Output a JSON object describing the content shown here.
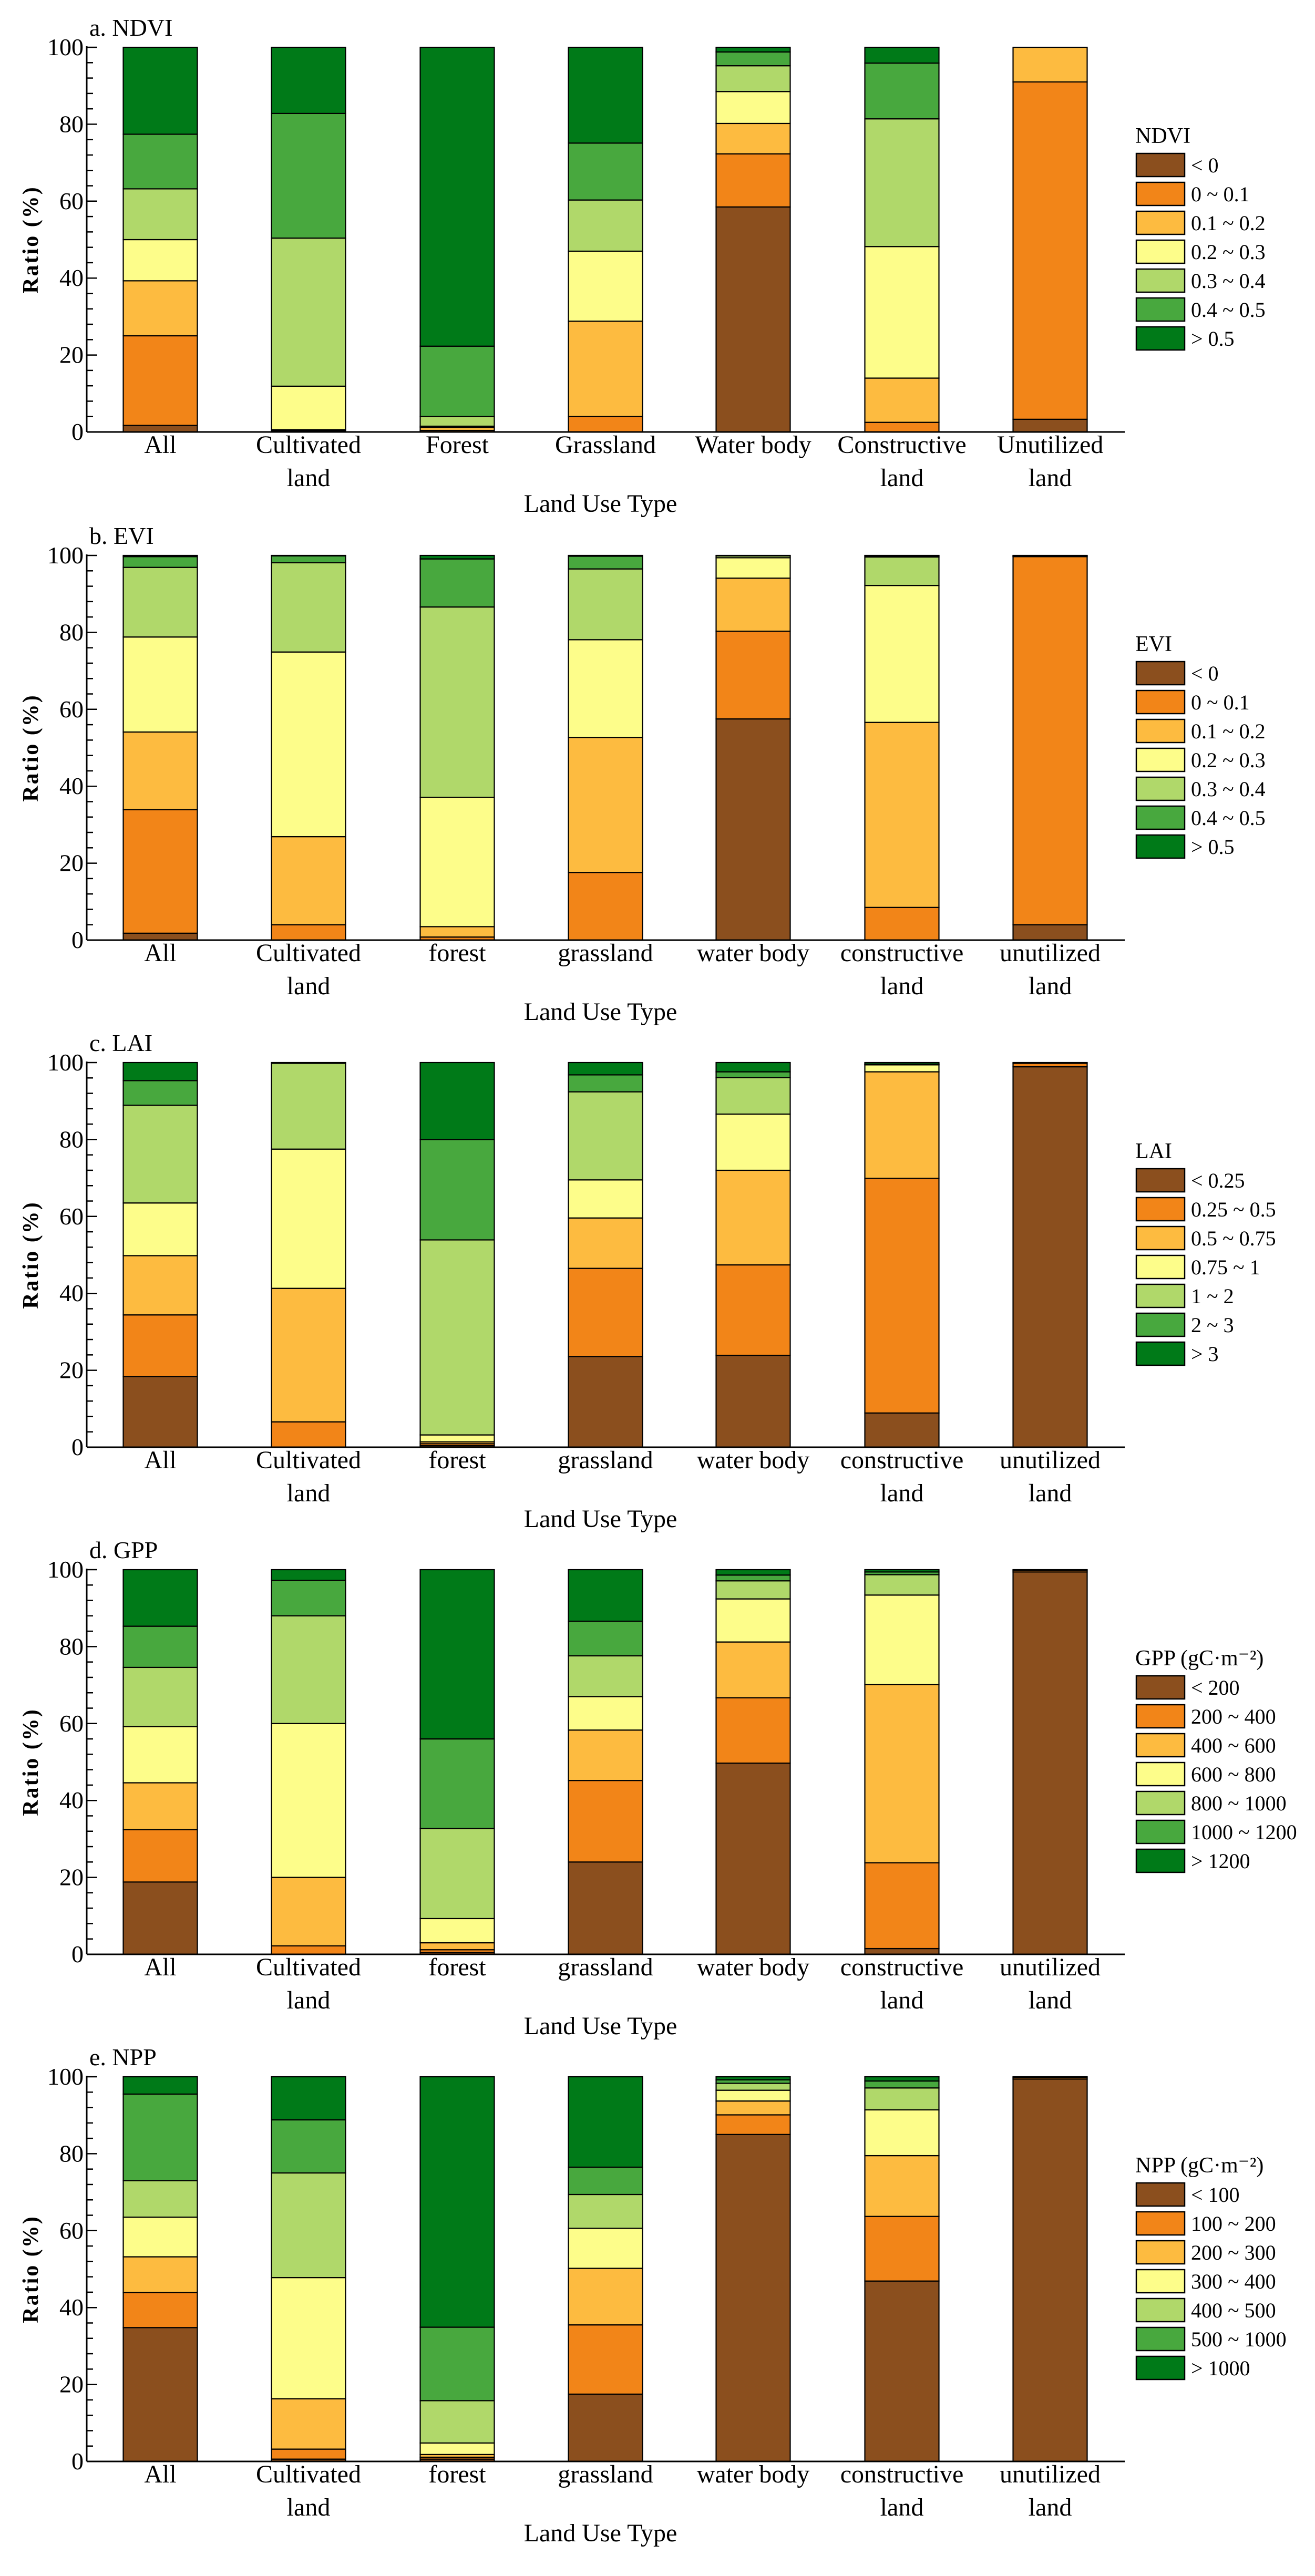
{
  "chart_data": [
    {
      "type": "bar",
      "stacked": true,
      "title": "a. NDVI",
      "xlabel": "Land Use Type",
      "ylabel": "Ratio (%)",
      "ylim": [
        0,
        100
      ],
      "yticks": [
        "0",
        "20",
        "40",
        "60",
        "80",
        "100"
      ],
      "grid": false,
      "legend_placement": "right",
      "legend_title": "NDVI",
      "categories": [
        [
          "All"
        ],
        [
          "Cultivated",
          "land"
        ],
        [
          "Forest"
        ],
        [
          "Grassland"
        ],
        [
          "Water body"
        ],
        [
          "Constructive",
          "land"
        ],
        [
          "Unutilized",
          "land"
        ]
      ],
      "series": [
        {
          "name": "< 0",
          "color": "#8B4F1E",
          "values": [
            1.7,
            0,
            0,
            0,
            58.5,
            0,
            3.3
          ]
        },
        {
          "name": "0 ~ 0.1",
          "color": "#F28518",
          "values": [
            23.3,
            0.3,
            0.4,
            4.0,
            13.8,
            2.5,
            87.7
          ]
        },
        {
          "name": "0.1 ~ 0.2",
          "color": "#FDBB40",
          "values": [
            14.3,
            0.3,
            0.8,
            24.8,
            7.9,
            11.5,
            9.0
          ]
        },
        {
          "name": "0.2 ~ 0.3",
          "color": "#FDFD8A",
          "values": [
            10.7,
            11.3,
            0.3,
            18.2,
            8.3,
            34.2,
            0
          ]
        },
        {
          "name": "0.3 ~ 0.4",
          "color": "#B0D86A",
          "values": [
            13.2,
            38.5,
            2.5,
            13.3,
            6.7,
            33.2,
            0
          ]
        },
        {
          "name": "0.4 ~ 0.5",
          "color": "#48A83E",
          "values": [
            14.2,
            32.4,
            18.3,
            14.8,
            3.6,
            14.5,
            0
          ]
        },
        {
          "name": "> 0.5",
          "color": "#007A18",
          "values": [
            22.6,
            17.2,
            77.7,
            24.9,
            1.2,
            4.1,
            0
          ]
        }
      ]
    },
    {
      "type": "bar",
      "stacked": true,
      "title": "b. EVI",
      "xlabel": "Land Use Type",
      "ylabel": "Ratio (%)",
      "ylim": [
        0,
        100
      ],
      "yticks": [
        "0",
        "20",
        "40",
        "60",
        "80",
        "100"
      ],
      "grid": false,
      "legend_placement": "right",
      "legend_title": "EVI",
      "categories": [
        [
          "All"
        ],
        [
          "Cultivated",
          "land"
        ],
        [
          "forest"
        ],
        [
          "grassland"
        ],
        [
          "water body"
        ],
        [
          "constructive",
          "land"
        ],
        [
          "unutilized",
          "land"
        ]
      ],
      "series": [
        {
          "name": "< 0",
          "color": "#8B4F1E",
          "values": [
            1.8,
            0,
            0,
            0,
            57.5,
            0,
            4.0
          ]
        },
        {
          "name": "0 ~ 0.1",
          "color": "#F28518",
          "values": [
            32.1,
            4.0,
            0.8,
            17.6,
            22.8,
            8.5,
            95.7
          ]
        },
        {
          "name": "0.1 ~ 0.2",
          "color": "#FDBB40",
          "values": [
            20.2,
            22.9,
            2.7,
            35.1,
            13.8,
            48.1,
            0.1
          ]
        },
        {
          "name": "0.2 ~ 0.3",
          "color": "#FDFD8A",
          "values": [
            24.7,
            48.0,
            33.6,
            25.4,
            5.3,
            35.6,
            0.1
          ]
        },
        {
          "name": "0.3 ~ 0.4",
          "color": "#B0D86A",
          "values": [
            18.1,
            23.2,
            49.5,
            18.4,
            0.5,
            7.4,
            0.1
          ]
        },
        {
          "name": "0.4 ~ 0.5",
          "color": "#48A83E",
          "values": [
            2.8,
            1.8,
            12.5,
            3.3,
            0.1,
            0.3,
            0
          ]
        },
        {
          "name": "> 0.5",
          "color": "#007A18",
          "values": [
            0.3,
            0.1,
            0.9,
            0.2,
            0,
            0.1,
            0
          ]
        }
      ]
    },
    {
      "type": "bar",
      "stacked": true,
      "title": "c. LAI",
      "xlabel": "Land Use Type",
      "ylabel": "Ratio (%)",
      "ylim": [
        0,
        100
      ],
      "yticks": [
        "0",
        "20",
        "40",
        "60",
        "80",
        "100"
      ],
      "grid": false,
      "legend_placement": "right",
      "legend_title": "LAI",
      "categories": [
        [
          "All"
        ],
        [
          "Cultivated",
          "land"
        ],
        [
          "forest"
        ],
        [
          "grassland"
        ],
        [
          "water body"
        ],
        [
          "constructive",
          "land"
        ],
        [
          "unutilized",
          "land"
        ]
      ],
      "series": [
        {
          "name": "< 0.25",
          "color": "#8B4F1E",
          "values": [
            18.4,
            0,
            0.4,
            23.6,
            23.9,
            8.9,
            98.9
          ]
        },
        {
          "name": "0.25 ~ 0.5",
          "color": "#F28518",
          "values": [
            16.0,
            6.6,
            0.5,
            22.9,
            23.5,
            61.0,
            0.9
          ]
        },
        {
          "name": "0.5 ~ 0.75",
          "color": "#FDBB40",
          "values": [
            15.4,
            34.7,
            0.5,
            13.1,
            24.6,
            27.7,
            0.2
          ]
        },
        {
          "name": "0.75 ~ 1",
          "color": "#FDFD8A",
          "values": [
            13.7,
            36.2,
            1.8,
            9.9,
            14.6,
            1.8,
            0
          ]
        },
        {
          "name": "1 ~ 2",
          "color": "#B0D86A",
          "values": [
            25.4,
            22.3,
            50.7,
            22.9,
            9.5,
            0.1,
            0
          ]
        },
        {
          "name": "2 ~ 3",
          "color": "#48A83E",
          "values": [
            6.4,
            0.1,
            26.1,
            4.4,
            1.5,
            0.1,
            0
          ]
        },
        {
          "name": "> 3",
          "color": "#007A18",
          "values": [
            4.7,
            0.1,
            20.0,
            3.2,
            2.4,
            0.4,
            0
          ]
        }
      ]
    },
    {
      "type": "bar",
      "stacked": true,
      "title": "d. GPP",
      "xlabel": "Land Use Type",
      "ylabel": "Ratio (%)",
      "ylim": [
        0,
        100
      ],
      "yticks": [
        "0",
        "20",
        "40",
        "60",
        "80",
        "100"
      ],
      "grid": false,
      "legend_placement": "right",
      "legend_title": "GPP (gC·m⁻²)",
      "categories": [
        [
          "All"
        ],
        [
          "Cultivated",
          "land"
        ],
        [
          "forest"
        ],
        [
          "grassland"
        ],
        [
          "water body"
        ],
        [
          "constructive",
          "land"
        ],
        [
          "unutilized",
          "land"
        ]
      ],
      "series": [
        {
          "name": "< 200",
          "color": "#8B4F1E",
          "values": [
            18.8,
            0,
            0.5,
            24.0,
            49.7,
            1.5,
            99.4
          ]
        },
        {
          "name": "200 ~ 400",
          "color": "#F28518",
          "values": [
            13.6,
            2.2,
            0.7,
            21.2,
            17.0,
            22.3,
            0.4
          ]
        },
        {
          "name": "400 ~ 600",
          "color": "#FDBB40",
          "values": [
            12.2,
            17.8,
            1.8,
            13.1,
            14.5,
            46.3,
            0.2
          ]
        },
        {
          "name": "600 ~ 800",
          "color": "#FDFD8A",
          "values": [
            14.6,
            40.0,
            6.3,
            8.7,
            11.2,
            23.3,
            0
          ]
        },
        {
          "name": "800 ~ 1000",
          "color": "#B0D86A",
          "values": [
            15.4,
            28.0,
            23.4,
            10.6,
            4.7,
            5.3,
            0
          ]
        },
        {
          "name": "1000 ~ 1200",
          "color": "#48A83E",
          "values": [
            10.7,
            9.2,
            23.3,
            9.0,
            1.5,
            0.7,
            0
          ]
        },
        {
          "name": "> 1200",
          "color": "#007A18",
          "values": [
            14.7,
            2.8,
            44.0,
            13.4,
            1.4,
            0.6,
            0
          ]
        }
      ]
    },
    {
      "type": "bar",
      "stacked": true,
      "title": "e. NPP",
      "xlabel": "Land Use Type",
      "ylabel": "Ratio (%)",
      "ylim": [
        0,
        100
      ],
      "yticks": [
        "0",
        "20",
        "40",
        "60",
        "80",
        "100"
      ],
      "grid": false,
      "legend_placement": "right",
      "legend_title": "NPP (gC·m⁻²)",
      "categories": [
        [
          "All"
        ],
        [
          "Cultivated",
          "land"
        ],
        [
          "forest"
        ],
        [
          "grassland"
        ],
        [
          "water body"
        ],
        [
          "constructive",
          "land"
        ],
        [
          "unutilized",
          "land"
        ]
      ],
      "series": [
        {
          "name": "< 100",
          "color": "#8B4F1E",
          "values": [
            34.8,
            0.6,
            0.6,
            17.5,
            85.0,
            46.9,
            99.4
          ]
        },
        {
          "name": "100 ~ 200",
          "color": "#F28518",
          "values": [
            9.1,
            2.6,
            0.5,
            18.0,
            5.1,
            16.8,
            0.4
          ]
        },
        {
          "name": "200 ~ 300",
          "color": "#FDBB40",
          "values": [
            9.3,
            13.1,
            0.7,
            14.7,
            3.6,
            15.8,
            0.2
          ]
        },
        {
          "name": "300 ~ 400",
          "color": "#FDFD8A",
          "values": [
            10.3,
            31.5,
            3.0,
            10.4,
            2.8,
            11.9,
            0
          ]
        },
        {
          "name": "400 ~ 500",
          "color": "#B0D86A",
          "values": [
            9.5,
            27.2,
            11.0,
            8.8,
            1.8,
            5.7,
            0
          ]
        },
        {
          "name": "500 ~ 1000",
          "color": "#48A83E",
          "values": [
            22.5,
            13.8,
            19.1,
            7.1,
            0.9,
            1.8,
            0
          ]
        },
        {
          "name": "> 1000",
          "color": "#007A18",
          "values": [
            4.5,
            11.2,
            65.1,
            23.5,
            0.8,
            1.1,
            0
          ]
        }
      ]
    }
  ]
}
